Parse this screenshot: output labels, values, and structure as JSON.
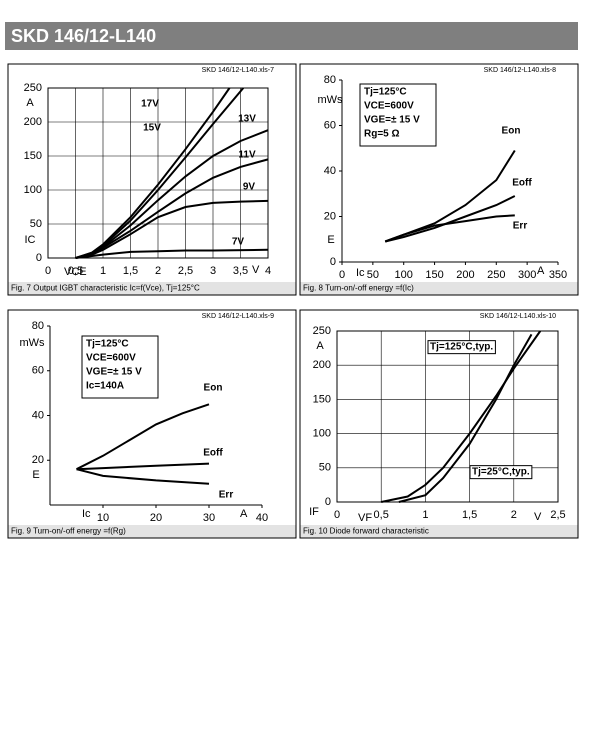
{
  "header": {
    "title": "SKD 146/12-L140"
  },
  "chart_data": [
    {
      "type": "line",
      "file_label": "SKD 146/12-L140.xls-7",
      "caption": "Fig. 7 Output IGBT characteristic Ic=f(Vce), Tj=125°C",
      "xlabel": "VCE",
      "xunit": "V",
      "ylabel": "IC",
      "yunit": "A",
      "xlim": [
        0,
        4
      ],
      "xticks": [
        0,
        {
          "value": 0.5,
          "label": "0,5"
        },
        1,
        {
          "value": 1.5,
          "label": "1,5"
        },
        2,
        {
          "value": 2.5,
          "label": "2,5"
        },
        3,
        {
          "value": 3.5,
          "label": "3,5"
        },
        4
      ],
      "ylim": [
        0,
        250
      ],
      "yticks": [
        0,
        50,
        100,
        150,
        200,
        250
      ],
      "grid": true,
      "series": [
        {
          "name": "17V",
          "color": "#000000",
          "x": [
            0.5,
            0.8,
            1,
            1.5,
            2,
            2.5,
            3,
            3.3
          ],
          "values": [
            0,
            8,
            20,
            60,
            108,
            160,
            215,
            250
          ]
        },
        {
          "name": "15V",
          "color": "#000000",
          "x": [
            0.5,
            0.8,
            1,
            1.5,
            2,
            2.5,
            3,
            3.55
          ],
          "values": [
            0,
            7,
            18,
            55,
            100,
            148,
            197,
            250
          ]
        },
        {
          "name": "13V",
          "color": "#000000",
          "x": [
            0.5,
            0.8,
            1,
            1.5,
            2,
            2.5,
            3,
            3.5,
            4
          ],
          "values": [
            0,
            6,
            16,
            48,
            85,
            120,
            150,
            172,
            188
          ]
        },
        {
          "name": "11V",
          "color": "#000000",
          "x": [
            0.5,
            0.8,
            1,
            1.5,
            2,
            2.5,
            3,
            3.5,
            4
          ],
          "values": [
            0,
            6,
            15,
            40,
            68,
            95,
            118,
            134,
            145
          ]
        },
        {
          "name": "9V",
          "color": "#000000",
          "x": [
            0.5,
            0.8,
            1,
            1.5,
            2,
            2.5,
            3,
            3.5,
            4
          ],
          "values": [
            0,
            5,
            12,
            35,
            60,
            75,
            81,
            83,
            84
          ]
        },
        {
          "name": "7V",
          "color": "#000000",
          "x": [
            0.5,
            0.8,
            1,
            1.5,
            2,
            2.5,
            3,
            4
          ],
          "values": [
            0,
            3,
            5,
            9,
            10,
            11,
            11,
            12
          ]
        }
      ]
    },
    {
      "type": "line",
      "file_label": "SKD 146/12-L140.xls-8",
      "caption": "Fig. 8 Turn-on/-off energy =f(Ic)",
      "xlabel": "Ic",
      "xunit": "A",
      "ylabel": "E",
      "yunit": "mWs",
      "notes": [
        "Tj=125°C",
        "VCE=600V",
        "VGE=± 15 V",
        "Rg=5 Ω"
      ],
      "xlim": [
        0,
        350
      ],
      "xticks": [
        0,
        50,
        100,
        150,
        200,
        250,
        300,
        350
      ],
      "ylim": [
        0,
        80
      ],
      "yticks": [
        0,
        20,
        40,
        60,
        80
      ],
      "grid": false,
      "series": [
        {
          "name": "Eon",
          "color": "#000000",
          "x": [
            70,
            100,
            150,
            200,
            250,
            280
          ],
          "values": [
            9,
            12,
            17,
            25,
            36,
            49
          ]
        },
        {
          "name": "Eoff",
          "color": "#000000",
          "x": [
            70,
            100,
            150,
            200,
            250,
            280
          ],
          "values": [
            9,
            11,
            15,
            20,
            25,
            29
          ]
        },
        {
          "name": "Err",
          "color": "#000000",
          "x": [
            70,
            100,
            150,
            200,
            250,
            280
          ],
          "values": [
            9,
            12,
            16,
            18,
            20,
            20.5
          ]
        }
      ]
    },
    {
      "type": "line",
      "file_label": "SKD 146/12-L140.xls-9",
      "caption": "Fig. 9 Turn-on/-off energy =f(Rg)",
      "xlabel": "Ic",
      "xunit": "A",
      "ylabel": "E",
      "yunit": "mWs",
      "notes": [
        "Tj=125°C",
        "VCE=600V",
        "VGE=± 15 V",
        "Ic=140A"
      ],
      "xlim": [
        0,
        40
      ],
      "xticks": [
        10,
        20,
        30,
        40
      ],
      "ylim": [
        0,
        80
      ],
      "yticks": [
        20,
        40,
        60,
        80
      ],
      "grid": false,
      "series": [
        {
          "name": "Eon",
          "color": "#000000",
          "x": [
            5,
            10,
            15,
            20,
            25,
            30
          ],
          "values": [
            16,
            22,
            29,
            36,
            41,
            45
          ]
        },
        {
          "name": "Eoff",
          "color": "#000000",
          "x": [
            5,
            10,
            20,
            30
          ],
          "values": [
            16,
            16.5,
            17.5,
            18.5
          ]
        },
        {
          "name": "Err",
          "color": "#000000",
          "x": [
            5,
            10,
            20,
            30
          ],
          "values": [
            16,
            13,
            11,
            9.5
          ]
        }
      ]
    },
    {
      "type": "line",
      "file_label": "SKD 146/12-L140.xls-10",
      "caption": "Fig. 10 Diode forward characteristic",
      "xlabel": "VF",
      "xunit": "V",
      "ylabel": "IF",
      "yunit": "A",
      "xlim": [
        0,
        2.5
      ],
      "xticks": [
        0,
        {
          "value": 0.5,
          "label": "0,5"
        },
        1,
        {
          "value": 1.5,
          "label": "1,5"
        },
        2,
        {
          "value": 2.5,
          "label": "2,5"
        }
      ],
      "ylim": [
        0,
        250
      ],
      "yticks": [
        0,
        50,
        100,
        150,
        200,
        250
      ],
      "grid": true,
      "series": [
        {
          "name": "Tj=125°C,typ.",
          "color": "#000000",
          "x": [
            0.5,
            0.8,
            1,
            1.2,
            1.5,
            1.8,
            2,
            2.3
          ],
          "values": [
            0,
            8,
            25,
            50,
            100,
            155,
            195,
            250
          ]
        },
        {
          "name": "Tj=25°C,typ.",
          "color": "#000000",
          "x": [
            0.7,
            1,
            1.2,
            1.5,
            1.8,
            2,
            2.2
          ],
          "values": [
            0,
            10,
            35,
            85,
            150,
            200,
            245
          ]
        }
      ]
    }
  ]
}
